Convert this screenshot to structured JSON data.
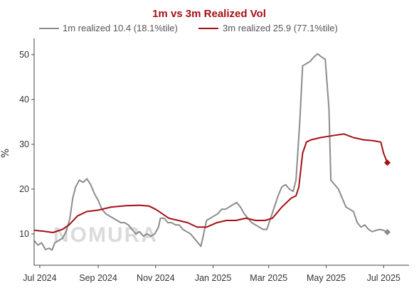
{
  "chart_data": {
    "type": "line",
    "title": "1m vs 3m Realized Vol",
    "ylabel": "%",
    "xlabel": "",
    "ylim": [
      3,
      53
    ],
    "yticks": [
      10,
      20,
      30,
      40,
      50
    ],
    "xlim": [
      "2024-06-25",
      "2025-07-28"
    ],
    "xticks": [
      {
        "date": "2024-07-01",
        "label": "Jul 2024"
      },
      {
        "date": "2024-09-01",
        "label": "Sep 2024"
      },
      {
        "date": "2024-11-01",
        "label": "Nov 2024"
      },
      {
        "date": "2025-01-01",
        "label": "Jan 2025"
      },
      {
        "date": "2025-03-01",
        "label": "Mar 2025"
      },
      {
        "date": "2025-05-01",
        "label": "May 2025"
      },
      {
        "date": "2025-07-01",
        "label": "Jul 2025"
      }
    ],
    "grid": false,
    "legend_position": "top",
    "watermark": "NOMURA",
    "series": [
      {
        "name": "1m realized 10.4 (18.1%tile)",
        "color": "#8c8c8c",
        "last_marker": true,
        "points": [
          [
            "2024-06-25",
            8.5
          ],
          [
            "2024-06-29",
            7.5
          ],
          [
            "2024-07-03",
            8.0
          ],
          [
            "2024-07-07",
            6.5
          ],
          [
            "2024-07-11",
            6.8
          ],
          [
            "2024-07-14",
            6.4
          ],
          [
            "2024-07-17",
            8.0
          ],
          [
            "2024-07-21",
            8.5
          ],
          [
            "2024-07-25",
            9.0
          ],
          [
            "2024-07-29",
            10.5
          ],
          [
            "2024-08-02",
            13.5
          ],
          [
            "2024-08-05",
            18.0
          ],
          [
            "2024-08-08",
            20.5
          ],
          [
            "2024-08-12",
            22.0
          ],
          [
            "2024-08-16",
            21.5
          ],
          [
            "2024-08-20",
            22.3
          ],
          [
            "2024-08-24",
            21.0
          ],
          [
            "2024-08-28",
            19.0
          ],
          [
            "2024-09-01",
            17.5
          ],
          [
            "2024-09-05",
            15.5
          ],
          [
            "2024-09-09",
            14.5
          ],
          [
            "2024-09-13",
            14.0
          ],
          [
            "2024-09-17",
            13.5
          ],
          [
            "2024-09-21",
            13.0
          ],
          [
            "2024-09-25",
            12.5
          ],
          [
            "2024-09-29",
            12.5
          ],
          [
            "2024-10-03",
            12.0
          ],
          [
            "2024-10-07",
            11.0
          ],
          [
            "2024-10-11",
            10.0
          ],
          [
            "2024-10-15",
            10.5
          ],
          [
            "2024-10-19",
            9.5
          ],
          [
            "2024-10-23",
            10.0
          ],
          [
            "2024-10-27",
            9.5
          ],
          [
            "2024-10-31",
            10.0
          ],
          [
            "2024-11-04",
            11.5
          ],
          [
            "2024-11-06",
            13.5
          ],
          [
            "2024-11-10",
            13.5
          ],
          [
            "2024-11-14",
            12.5
          ],
          [
            "2024-11-18",
            12.5
          ],
          [
            "2024-11-22",
            12.0
          ],
          [
            "2024-11-26",
            12.0
          ],
          [
            "2024-11-30",
            11.0
          ],
          [
            "2024-12-04",
            10.5
          ],
          [
            "2024-12-08",
            10.0
          ],
          [
            "2024-12-12",
            9.0
          ],
          [
            "2024-12-16",
            8.0
          ],
          [
            "2024-12-19",
            7.2
          ],
          [
            "2024-12-22",
            10.0
          ],
          [
            "2024-12-25",
            13.0
          ],
          [
            "2024-12-29",
            13.5
          ],
          [
            "2025-01-02",
            14.0
          ],
          [
            "2025-01-06",
            14.5
          ],
          [
            "2025-01-10",
            15.5
          ],
          [
            "2025-01-14",
            15.5
          ],
          [
            "2025-01-18",
            16.0
          ],
          [
            "2025-01-22",
            16.5
          ],
          [
            "2025-01-26",
            17.0
          ],
          [
            "2025-01-30",
            16.0
          ],
          [
            "2025-02-03",
            14.5
          ],
          [
            "2025-02-07",
            13.5
          ],
          [
            "2025-02-11",
            12.5
          ],
          [
            "2025-02-15",
            12.0
          ],
          [
            "2025-02-19",
            11.5
          ],
          [
            "2025-02-23",
            11.0
          ],
          [
            "2025-02-27",
            11.0
          ],
          [
            "2025-03-03",
            13.5
          ],
          [
            "2025-03-07",
            16.0
          ],
          [
            "2025-03-11",
            18.5
          ],
          [
            "2025-03-15",
            20.5
          ],
          [
            "2025-03-19",
            21.0
          ],
          [
            "2025-03-23",
            20.0
          ],
          [
            "2025-03-27",
            19.5
          ],
          [
            "2025-03-30",
            22.0
          ],
          [
            "2025-04-03",
            35.0
          ],
          [
            "2025-04-06",
            47.5
          ],
          [
            "2025-04-10",
            48.0
          ],
          [
            "2025-04-14",
            48.5
          ],
          [
            "2025-04-18",
            49.5
          ],
          [
            "2025-04-22",
            50.2
          ],
          [
            "2025-04-26",
            49.5
          ],
          [
            "2025-04-30",
            49.0
          ],
          [
            "2025-05-04",
            38.0
          ],
          [
            "2025-05-06",
            22.0
          ],
          [
            "2025-05-10",
            21.0
          ],
          [
            "2025-05-14",
            20.0
          ],
          [
            "2025-05-18",
            18.0
          ],
          [
            "2025-05-22",
            16.0
          ],
          [
            "2025-05-26",
            15.5
          ],
          [
            "2025-05-30",
            15.0
          ],
          [
            "2025-06-03",
            12.5
          ],
          [
            "2025-06-07",
            11.5
          ],
          [
            "2025-06-11",
            12.0
          ],
          [
            "2025-06-15",
            11.0
          ],
          [
            "2025-06-19",
            10.5
          ],
          [
            "2025-06-23",
            10.8
          ],
          [
            "2025-06-27",
            11.0
          ],
          [
            "2025-07-01",
            10.8
          ],
          [
            "2025-07-05",
            10.4
          ]
        ]
      },
      {
        "name": "3m realized 25.9 (77.1%tile)",
        "color": "#a50f15",
        "last_marker": true,
        "points": [
          [
            "2024-06-25",
            10.8
          ],
          [
            "2024-07-05",
            10.6
          ],
          [
            "2024-07-15",
            10.3
          ],
          [
            "2024-07-25",
            11.0
          ],
          [
            "2024-08-01",
            12.0
          ],
          [
            "2024-08-10",
            14.0
          ],
          [
            "2024-08-20",
            15.0
          ],
          [
            "2024-09-01",
            15.3
          ],
          [
            "2024-09-15",
            16.0
          ],
          [
            "2024-10-01",
            16.3
          ],
          [
            "2024-10-15",
            16.4
          ],
          [
            "2024-10-25",
            16.2
          ],
          [
            "2024-11-01",
            15.5
          ],
          [
            "2024-11-08",
            14.5
          ],
          [
            "2024-11-15",
            13.5
          ],
          [
            "2024-11-25",
            13.0
          ],
          [
            "2024-12-05",
            12.5
          ],
          [
            "2024-12-15",
            11.5
          ],
          [
            "2024-12-25",
            11.5
          ],
          [
            "2025-01-05",
            12.5
          ],
          [
            "2025-01-15",
            13.0
          ],
          [
            "2025-01-25",
            13.0
          ],
          [
            "2025-02-05",
            13.5
          ],
          [
            "2025-02-15",
            13.0
          ],
          [
            "2025-02-25",
            13.0
          ],
          [
            "2025-03-05",
            13.5
          ],
          [
            "2025-03-15",
            16.0
          ],
          [
            "2025-03-25",
            18.0
          ],
          [
            "2025-03-30",
            18.5
          ],
          [
            "2025-04-02",
            20.5
          ],
          [
            "2025-04-06",
            28.0
          ],
          [
            "2025-04-10",
            30.5
          ],
          [
            "2025-04-15",
            31.0
          ],
          [
            "2025-04-25",
            31.5
          ],
          [
            "2025-05-01",
            31.7
          ],
          [
            "2025-05-10",
            32.0
          ],
          [
            "2025-05-20",
            32.3
          ],
          [
            "2025-05-30",
            31.5
          ],
          [
            "2025-06-10",
            31.0
          ],
          [
            "2025-06-20",
            30.8
          ],
          [
            "2025-06-28",
            30.5
          ],
          [
            "2025-07-01",
            28.0
          ],
          [
            "2025-07-05",
            25.9
          ]
        ]
      }
    ]
  }
}
